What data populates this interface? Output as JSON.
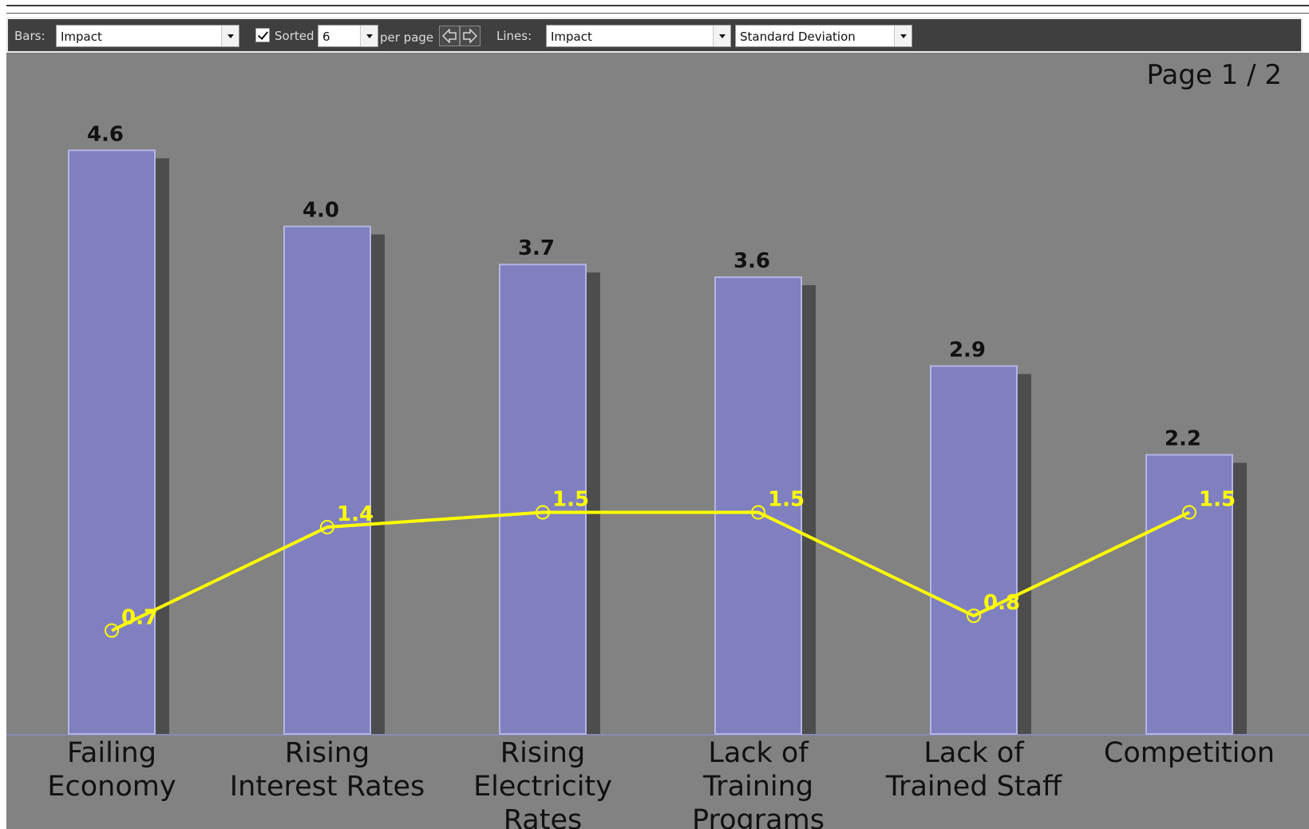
{
  "toolbar": {
    "bars_label": "Bars:",
    "bars_metric": "Impact",
    "sorted_label": "Sorted",
    "sorted_checked": true,
    "per_page_value": "6",
    "per_page_label": "per page",
    "lines_label": "Lines:",
    "lines_metric": "Impact",
    "lines_stat": "Standard Deviation"
  },
  "page_label": "Page 1 / 2",
  "colors": {
    "bar": "#8080c0",
    "bar_shadow": "#4d4d4d",
    "line": "#ffff00",
    "background": "#828282"
  },
  "chart_data": {
    "type": "bar",
    "categories": [
      [
        "Failing",
        "Economy"
      ],
      [
        "Rising",
        "Interest Rates"
      ],
      [
        "Rising",
        "Electricity",
        "Rates"
      ],
      [
        "Lack of",
        "Training",
        "Programs"
      ],
      [
        "Lack of",
        "Trained Staff"
      ],
      [
        "Competition"
      ]
    ],
    "series": [
      {
        "values": [
          4.6,
          4.0,
          3.7,
          3.6,
          2.9,
          2.2
        ],
        "labels": [
          "4.6",
          "4.0",
          "3.7",
          "3.6",
          "2.9",
          "2.2"
        ]
      },
      {
        "type": "line",
        "values": [
          0.7,
          1.4,
          1.5,
          1.5,
          0.8,
          1.5
        ],
        "labels": [
          "0.7",
          "1.4",
          "1.5",
          "1.5",
          "0.8",
          "1.5"
        ]
      }
    ],
    "grid": false,
    "legend": "none"
  }
}
